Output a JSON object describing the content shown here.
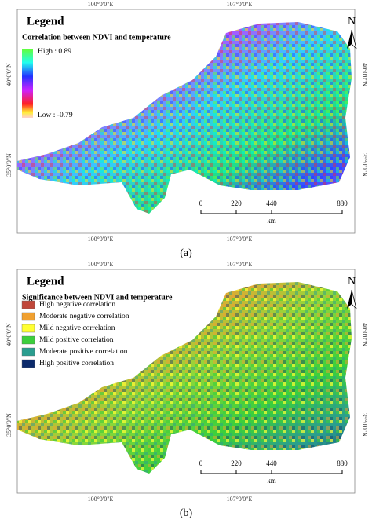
{
  "panels": [
    {
      "caption": "(a)",
      "legend": {
        "title": "Legend",
        "subtitle": "Correlation between NDVI and temperature",
        "high": "High : 0.89",
        "low": "Low : -0.79"
      },
      "lon_labels": [
        "100°0'0\"E",
        "107°0'0\"E"
      ],
      "lat_labels": [
        "40°0'0\"N",
        "35°0'0\"N"
      ],
      "north": "N",
      "scale": {
        "ticks": [
          0,
          220,
          440,
          880
        ],
        "unit": "km"
      }
    },
    {
      "caption": "(b)",
      "legend": {
        "title": "Legend",
        "subtitle": "Significance between NDVI and temperature",
        "items": [
          {
            "label": "High negative correlation",
            "color": "#c0473a"
          },
          {
            "label": "Moderate negative correlation",
            "color": "#f0a030"
          },
          {
            "label": "Mild negative correlation",
            "color": "#ffff33"
          },
          {
            "label": "Mild positive correlation",
            "color": "#3ccf3c"
          },
          {
            "label": "Moderate positive correlation",
            "color": "#2a9d8f"
          },
          {
            "label": "High positive correlation",
            "color": "#0c2a6b"
          }
        ]
      },
      "lon_labels": [
        "100°0'0\"E",
        "107°0'0\"E"
      ],
      "lat_labels": [
        "40°0'0\"N",
        "35°0'0\"N"
      ],
      "north": "N",
      "scale": {
        "ticks": [
          0,
          220,
          440,
          880
        ],
        "unit": "km"
      }
    }
  ]
}
